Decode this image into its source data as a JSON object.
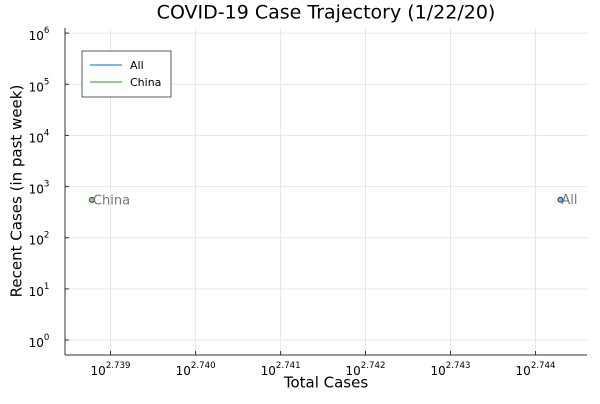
{
  "chart_data": {
    "type": "scatter",
    "title": "COVID-19 Case Trajectory (1/22/20)",
    "x_label": "Total Cases",
    "y_label": "Recent Cases (in past week)",
    "xscale": "log",
    "yscale": "log",
    "grid": true,
    "legend": "upper left",
    "xlim": [
      547.6,
      555.4
    ],
    "ylim": [
      0.51,
      1260000
    ],
    "xticks": [
      {
        "value": 548.276,
        "label": "10^2.739"
      },
      {
        "value": 549.541,
        "label": "10^2.740"
      },
      {
        "value": 550.808,
        "label": "10^2.741"
      },
      {
        "value": 552.077,
        "label": "10^2.742"
      },
      {
        "value": 553.35,
        "label": "10^2.743"
      },
      {
        "value": 554.626,
        "label": "10^2.744"
      }
    ],
    "yticks": [
      {
        "value": 1,
        "label": "10^0"
      },
      {
        "value": 10,
        "label": "10^1"
      },
      {
        "value": 100,
        "label": "10^2"
      },
      {
        "value": 1000,
        "label": "10^3"
      },
      {
        "value": 10000,
        "label": "10^4"
      },
      {
        "value": 100000,
        "label": "10^5"
      },
      {
        "value": 1000000,
        "label": "10^6"
      }
    ],
    "series": [
      {
        "name": "All",
        "color": "#6fbde8",
        "x": [
          555
        ],
        "values": [
          555
        ]
      },
      {
        "name": "China",
        "color": "#8fcf8f",
        "x": [
          548
        ],
        "values": [
          548
        ]
      }
    ]
  }
}
